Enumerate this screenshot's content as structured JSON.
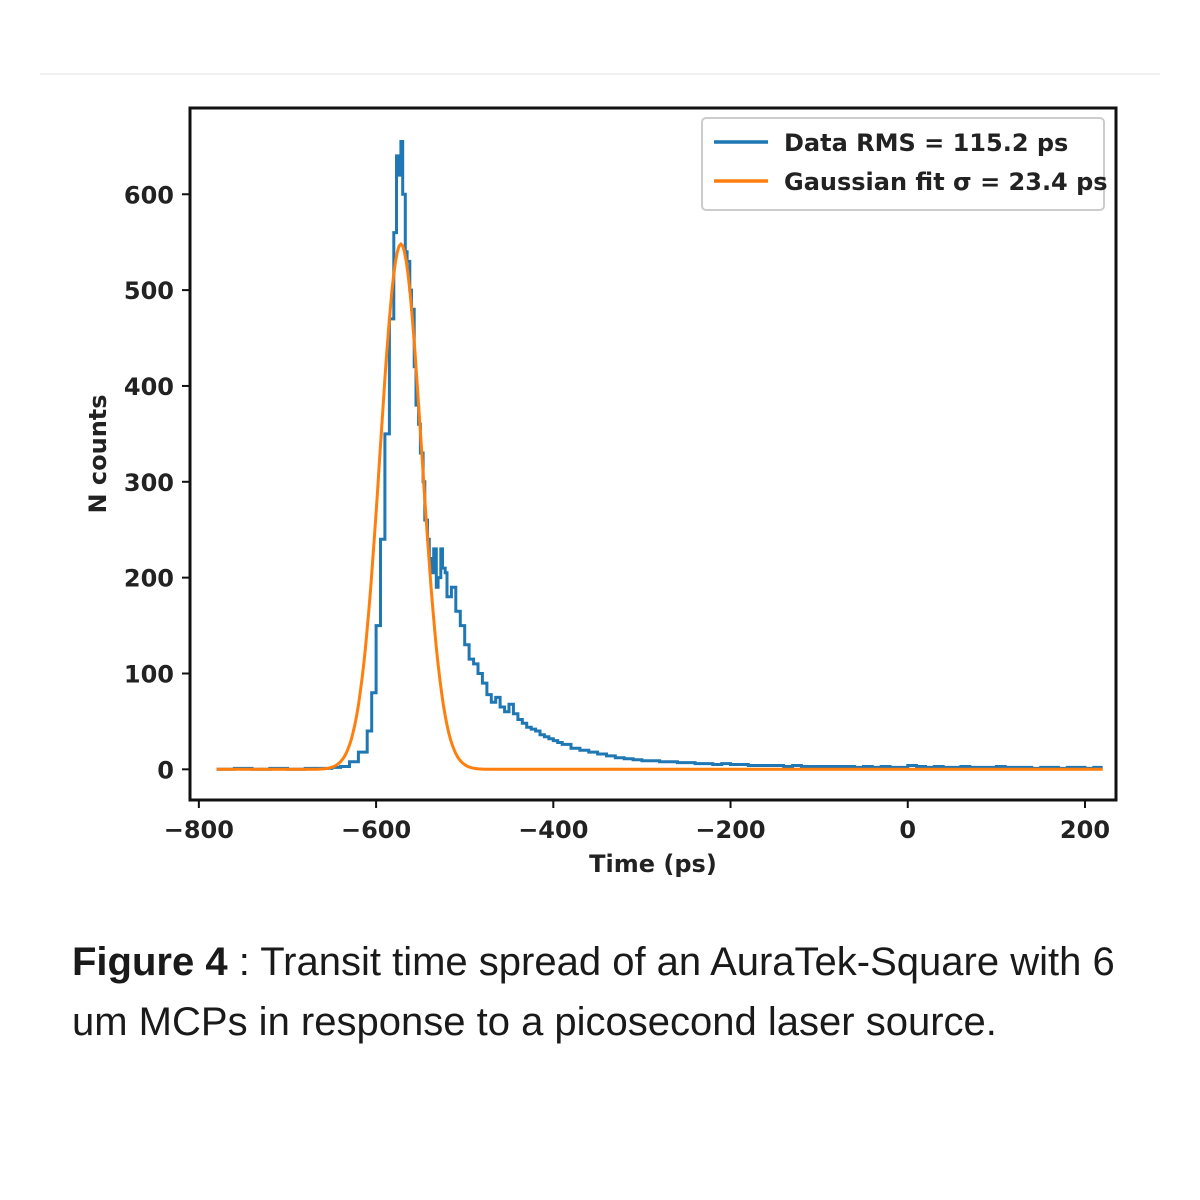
{
  "caption": {
    "label": "Figure 4",
    "separator": " : ",
    "text": "Transit time spread of an AuraTek-Square with 6 um MCPs in response to a picosecond laser source."
  },
  "chart_data": {
    "type": "line",
    "title": "",
    "xlabel": "Time (ps)",
    "ylabel": "N counts",
    "xlim": [
      -810,
      235
    ],
    "ylim": [
      -32,
      690
    ],
    "xticks": [
      -800,
      -600,
      -400,
      -200,
      0,
      200
    ],
    "xtick_labels": [
      "−800",
      "−600",
      "−400",
      "−200",
      "0",
      "200"
    ],
    "yticks": [
      0,
      100,
      200,
      300,
      400,
      500,
      600
    ],
    "ytick_labels": [
      "0",
      "100",
      "200",
      "300",
      "400",
      "500",
      "600"
    ],
    "grid": false,
    "legend_position": "top-right",
    "series": [
      {
        "name": "Data RMS = 115.2 ps",
        "color": "#1f77b4",
        "style": "step",
        "x": [
          -780,
          -760,
          -740,
          -720,
          -700,
          -680,
          -660,
          -650,
          -640,
          -630,
          -620,
          -610,
          -605,
          -600,
          -595,
          -590,
          -585,
          -580,
          -577,
          -575,
          -572,
          -570,
          -567,
          -565,
          -562,
          -560,
          -557,
          -555,
          -552,
          -550,
          -547,
          -545,
          -542,
          -540,
          -537,
          -535,
          -532,
          -530,
          -527,
          -525,
          -522,
          -520,
          -515,
          -510,
          -505,
          -500,
          -495,
          -490,
          -485,
          -480,
          -475,
          -470,
          -465,
          -460,
          -455,
          -450,
          -445,
          -440,
          -435,
          -430,
          -425,
          -420,
          -415,
          -410,
          -405,
          -400,
          -395,
          -390,
          -380,
          -370,
          -360,
          -350,
          -340,
          -330,
          -320,
          -310,
          -300,
          -290,
          -280,
          -270,
          -260,
          -250,
          -240,
          -230,
          -220,
          -210,
          -200,
          -190,
          -180,
          -170,
          -160,
          -150,
          -140,
          -130,
          -120,
          -110,
          -100,
          -90,
          -80,
          -70,
          -60,
          -50,
          -40,
          -30,
          -20,
          -10,
          0,
          10,
          20,
          30,
          40,
          50,
          60,
          70,
          80,
          90,
          100,
          110,
          120,
          130,
          140,
          150,
          160,
          170,
          180,
          190,
          200,
          210,
          220
        ],
        "y": [
          0,
          1,
          0,
          1,
          0,
          1,
          1,
          2,
          3,
          8,
          18,
          40,
          80,
          150,
          240,
          350,
          470,
          560,
          640,
          620,
          655,
          600,
          540,
          530,
          500,
          480,
          420,
          380,
          360,
          330,
          300,
          260,
          240,
          220,
          205,
          230,
          190,
          200,
          230,
          210,
          205,
          180,
          190,
          165,
          150,
          130,
          115,
          110,
          100,
          90,
          78,
          70,
          75,
          65,
          60,
          68,
          58,
          52,
          48,
          44,
          42,
          40,
          36,
          34,
          32,
          30,
          28,
          26,
          22,
          20,
          18,
          16,
          14,
          12,
          11,
          10,
          9,
          9,
          8,
          8,
          7,
          7,
          6,
          6,
          5,
          6,
          5,
          5,
          4,
          4,
          4,
          4,
          3,
          4,
          3,
          3,
          3,
          3,
          3,
          3,
          2,
          3,
          2,
          3,
          2,
          2,
          4,
          3,
          2,
          3,
          2,
          2,
          3,
          2,
          2,
          2,
          3,
          2,
          2,
          2,
          1,
          2,
          2,
          1,
          2,
          2,
          1,
          2,
          2
        ]
      },
      {
        "name": "Gaussian fit σ = 23.4 ps",
        "color": "#ff7f0e",
        "style": "gaussian",
        "amplitude": 548,
        "mean": -572,
        "sigma": 23.4,
        "x_range": [
          -780,
          220
        ]
      }
    ]
  }
}
